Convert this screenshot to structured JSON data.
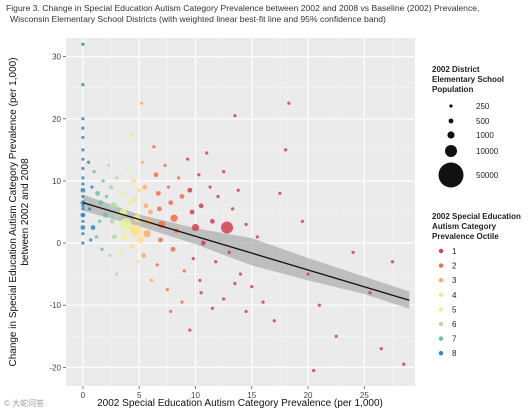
{
  "chart_data": {
    "type": "scatter",
    "title": "Figure 3. Change in Special Education Autism Category Prevalence between 2002 and 2008 vs Baseline (2002) Prevalence,",
    "subtitle": "Wisconsin Elementary School Districts (with weighted linear best-fit line and 95% confidence band)",
    "xlabel": "2002 Special Education Autism Category Prevalence (per 1,000)",
    "ylabel_line1": "Change in Special Education Autism Category Prevalence (per 1,000)",
    "ylabel_line2": "between 2002 and 2008",
    "xlim": [
      -1.5,
      29.5
    ],
    "ylim": [
      -23,
      33
    ],
    "x_ticks": [
      0,
      5,
      10,
      15,
      20,
      25
    ],
    "y_ticks": [
      -20,
      -10,
      0,
      10,
      20,
      30
    ],
    "grid": true,
    "fit_line": {
      "x": [
        0,
        29
      ],
      "y": [
        6.5,
        -9.2
      ]
    },
    "confidence_band": {
      "x": [
        0,
        5,
        10,
        15,
        20,
        25,
        29
      ],
      "lower": [
        5.2,
        2.7,
        -0.2,
        -3.6,
        -6.0,
        -8.2,
        -10.6
      ],
      "upper": [
        7.8,
        4.6,
        2.4,
        0.8,
        -2.4,
        -5.4,
        -7.8
      ]
    },
    "size_legend": {
      "title": [
        "2002 District",
        "Elementary School",
        "Population"
      ],
      "labels": [
        "250",
        "500",
        "1000",
        "10000",
        "50000"
      ]
    },
    "color_legend": {
      "title": [
        "2002 Special Education",
        "Autism Category",
        "Prevalence Octile"
      ],
      "labels": [
        "1",
        "2",
        "3",
        "4",
        "5",
        "6",
        "7",
        "8"
      ],
      "colors": [
        "#d53e4f",
        "#f46d43",
        "#fdae61",
        "#fee08b",
        "#e6f598",
        "#abdda4",
        "#66c2a5",
        "#3288bd"
      ]
    },
    "points": [
      {
        "x": 0,
        "y": 32,
        "s": 1,
        "g": 8
      },
      {
        "x": 0,
        "y": 25.5,
        "s": 1,
        "g": 8
      },
      {
        "x": 0,
        "y": 20,
        "s": 1,
        "g": 8
      },
      {
        "x": 0,
        "y": 18.5,
        "s": 1,
        "g": 8
      },
      {
        "x": 0,
        "y": 17,
        "s": 1,
        "g": 8
      },
      {
        "x": 0,
        "y": 15,
        "s": 1,
        "g": 8
      },
      {
        "x": 0,
        "y": 13.5,
        "s": 1,
        "g": 8
      },
      {
        "x": 0,
        "y": 12,
        "s": 1,
        "g": 8
      },
      {
        "x": 0,
        "y": 10.5,
        "s": 1,
        "g": 8
      },
      {
        "x": 0,
        "y": 9.5,
        "s": 1,
        "g": 8
      },
      {
        "x": 0,
        "y": 8.5,
        "s": 2,
        "g": 8
      },
      {
        "x": 0,
        "y": 7.5,
        "s": 1,
        "g": 8
      },
      {
        "x": 0,
        "y": 6.5,
        "s": 2,
        "g": 8
      },
      {
        "x": 0,
        "y": 5.5,
        "s": 1,
        "g": 8
      },
      {
        "x": 0,
        "y": 4.5,
        "s": 2,
        "g": 8
      },
      {
        "x": 0,
        "y": 3.5,
        "s": 1,
        "g": 8
      },
      {
        "x": 0,
        "y": 2.5,
        "s": 2,
        "g": 8
      },
      {
        "x": 0,
        "y": 1.5,
        "s": 1,
        "g": 8
      },
      {
        "x": 0,
        "y": 0,
        "s": 1,
        "g": 8
      },
      {
        "x": 0,
        "y": 4.5,
        "s": 1,
        "g": 8
      },
      {
        "x": 0,
        "y": 6.0,
        "s": 1,
        "g": 8
      },
      {
        "x": 0.5,
        "y": 13,
        "s": 1,
        "g": 8
      },
      {
        "x": 0.8,
        "y": 9,
        "s": 1,
        "g": 8
      },
      {
        "x": 0.6,
        "y": 5.5,
        "s": 1,
        "g": 8
      },
      {
        "x": 0.9,
        "y": 2.5,
        "s": 2,
        "g": 8
      },
      {
        "x": 0.7,
        "y": 0.5,
        "s": 1,
        "g": 8
      },
      {
        "x": 1.0,
        "y": 11.5,
        "s": 1,
        "g": 7
      },
      {
        "x": 1.3,
        "y": 8,
        "s": 2,
        "g": 7
      },
      {
        "x": 1.6,
        "y": 6.5,
        "s": 2,
        "g": 7
      },
      {
        "x": 1.5,
        "y": 3.5,
        "s": 1,
        "g": 7
      },
      {
        "x": 1.2,
        "y": 1,
        "s": 1,
        "g": 7
      },
      {
        "x": 1.8,
        "y": 10,
        "s": 1,
        "g": 7
      },
      {
        "x": 2.0,
        "y": 4.5,
        "s": 2,
        "g": 7
      },
      {
        "x": 2.1,
        "y": 7.5,
        "s": 1,
        "g": 7
      },
      {
        "x": 1.7,
        "y": -1,
        "s": 1,
        "g": 7
      },
      {
        "x": 2.3,
        "y": 12.5,
        "s": 1,
        "g": 6
      },
      {
        "x": 2.5,
        "y": 9,
        "s": 2,
        "g": 6
      },
      {
        "x": 2.7,
        "y": 6,
        "s": 3,
        "g": 6
      },
      {
        "x": 2.6,
        "y": 3.5,
        "s": 2,
        "g": 6
      },
      {
        "x": 2.8,
        "y": 1,
        "s": 2,
        "g": 6
      },
      {
        "x": 2.4,
        "y": -2,
        "s": 1,
        "g": 6
      },
      {
        "x": 3.0,
        "y": 10.5,
        "s": 1,
        "g": 6
      },
      {
        "x": 3.1,
        "y": 4.5,
        "s": 3,
        "g": 6
      },
      {
        "x": 3.0,
        "y": -5,
        "s": 1,
        "g": 6
      },
      {
        "x": 3.3,
        "y": 14.5,
        "s": 1,
        "g": 5
      },
      {
        "x": 3.5,
        "y": 8,
        "s": 2,
        "g": 5
      },
      {
        "x": 3.6,
        "y": 5,
        "s": 3,
        "g": 5
      },
      {
        "x": 3.8,
        "y": 3,
        "s": 4,
        "g": 5
      },
      {
        "x": 3.7,
        "y": 1,
        "s": 3,
        "g": 5
      },
      {
        "x": 3.4,
        "y": -1.5,
        "s": 2,
        "g": 5
      },
      {
        "x": 4.0,
        "y": 12,
        "s": 1,
        "g": 5
      },
      {
        "x": 4.1,
        "y": 6.5,
        "s": 2,
        "g": 5
      },
      {
        "x": 3.9,
        "y": -4,
        "s": 1,
        "g": 5
      },
      {
        "x": 4.3,
        "y": 17.5,
        "s": 1,
        "g": 4
      },
      {
        "x": 4.5,
        "y": 10,
        "s": 2,
        "g": 4
      },
      {
        "x": 4.6,
        "y": 7,
        "s": 2,
        "g": 4
      },
      {
        "x": 4.8,
        "y": 4,
        "s": 3,
        "g": 4
      },
      {
        "x": 4.7,
        "y": 2,
        "s": 4,
        "g": 4
      },
      {
        "x": 4.4,
        "y": -0.5,
        "s": 2,
        "g": 4
      },
      {
        "x": 5.0,
        "y": 8.5,
        "s": 2,
        "g": 4
      },
      {
        "x": 5.1,
        "y": 0.5,
        "s": 3,
        "g": 4
      },
      {
        "x": 4.9,
        "y": -3,
        "s": 1,
        "g": 4
      },
      {
        "x": 5.2,
        "y": 22.5,
        "s": 1,
        "g": 3
      },
      {
        "x": 5.3,
        "y": 13,
        "s": 1,
        "g": 3
      },
      {
        "x": 5.5,
        "y": 9,
        "s": 2,
        "g": 3
      },
      {
        "x": 5.6,
        "y": 6,
        "s": 2,
        "g": 3
      },
      {
        "x": 5.8,
        "y": 3.5,
        "s": 3,
        "g": 3
      },
      {
        "x": 5.7,
        "y": 1.5,
        "s": 3,
        "g": 3
      },
      {
        "x": 5.4,
        "y": -2,
        "s": 2,
        "g": 3
      },
      {
        "x": 6.0,
        "y": 5,
        "s": 2,
        "g": 3
      },
      {
        "x": 6.1,
        "y": -6,
        "s": 1,
        "g": 3
      },
      {
        "x": 6.3,
        "y": 15.5,
        "s": 1,
        "g": 2
      },
      {
        "x": 6.5,
        "y": 11,
        "s": 2,
        "g": 2
      },
      {
        "x": 6.7,
        "y": 8,
        "s": 2,
        "g": 2
      },
      {
        "x": 6.8,
        "y": 5.5,
        "s": 2,
        "g": 2
      },
      {
        "x": 7.0,
        "y": 3,
        "s": 3,
        "g": 2
      },
      {
        "x": 6.9,
        "y": 0.5,
        "s": 2,
        "g": 2
      },
      {
        "x": 6.6,
        "y": -3.5,
        "s": 1,
        "g": 2
      },
      {
        "x": 7.3,
        "y": 12.5,
        "s": 1,
        "g": 2
      },
      {
        "x": 7.6,
        "y": 9,
        "s": 1,
        "g": 2
      },
      {
        "x": 7.8,
        "y": 6.5,
        "s": 2,
        "g": 2
      },
      {
        "x": 8.1,
        "y": 4,
        "s": 3,
        "g": 2
      },
      {
        "x": 8.0,
        "y": -1,
        "s": 2,
        "g": 2
      },
      {
        "x": 7.5,
        "y": -7.5,
        "s": 1,
        "g": 2
      },
      {
        "x": 8.5,
        "y": 10.5,
        "s": 1,
        "g": 2
      },
      {
        "x": 8.8,
        "y": 7.5,
        "s": 2,
        "g": 2
      },
      {
        "x": 8.3,
        "y": 2,
        "s": 2,
        "g": 2
      },
      {
        "x": 9.0,
        "y": -4.5,
        "s": 1,
        "g": 2
      },
      {
        "x": 9.3,
        "y": 13.5,
        "s": 1,
        "g": 1
      },
      {
        "x": 9.5,
        "y": 8.5,
        "s": 2,
        "g": 1
      },
      {
        "x": 9.7,
        "y": 5,
        "s": 2,
        "g": 1
      },
      {
        "x": 10.0,
        "y": 2.5,
        "s": 3,
        "g": 1
      },
      {
        "x": 9.8,
        "y": -2.5,
        "s": 1,
        "g": 1
      },
      {
        "x": 10.3,
        "y": 11,
        "s": 1,
        "g": 1
      },
      {
        "x": 10.5,
        "y": 6,
        "s": 2,
        "g": 1
      },
      {
        "x": 10.7,
        "y": 0,
        "s": 2,
        "g": 1
      },
      {
        "x": 10.4,
        "y": -6,
        "s": 1,
        "g": 1
      },
      {
        "x": 11.0,
        "y": 14.5,
        "s": 1,
        "g": 1
      },
      {
        "x": 11.3,
        "y": 9,
        "s": 1,
        "g": 1
      },
      {
        "x": 11.5,
        "y": 3.5,
        "s": 2,
        "g": 1
      },
      {
        "x": 11.8,
        "y": -3,
        "s": 1,
        "g": 1
      },
      {
        "x": 12.0,
        "y": 7.5,
        "s": 1,
        "g": 1
      },
      {
        "x": 12.5,
        "y": 11.5,
        "s": 1,
        "g": 1
      },
      {
        "x": 12.8,
        "y": 2.5,
        "s": 4,
        "g": 1
      },
      {
        "x": 13.0,
        "y": -1.5,
        "s": 1,
        "g": 1
      },
      {
        "x": 13.3,
        "y": 5.5,
        "s": 1,
        "g": 1
      },
      {
        "x": 13.5,
        "y": 20.5,
        "s": 1,
        "g": 1
      },
      {
        "x": 13.8,
        "y": 8.5,
        "s": 1,
        "g": 1
      },
      {
        "x": 14.0,
        "y": -5,
        "s": 1,
        "g": 1
      },
      {
        "x": 14.5,
        "y": 3,
        "s": 1,
        "g": 1
      },
      {
        "x": 15.0,
        "y": -7,
        "s": 1,
        "g": 1
      },
      {
        "x": 15.5,
        "y": 1,
        "s": 1,
        "g": 1
      },
      {
        "x": 16.0,
        "y": -9.5,
        "s": 1,
        "g": 1
      },
      {
        "x": 17.0,
        "y": -12.5,
        "s": 1,
        "g": 1
      },
      {
        "x": 17.5,
        "y": 8,
        "s": 1,
        "g": 1
      },
      {
        "x": 18.0,
        "y": 15,
        "s": 1,
        "g": 1
      },
      {
        "x": 18.3,
        "y": 22.5,
        "s": 1,
        "g": 1
      },
      {
        "x": 19.5,
        "y": 3.5,
        "s": 1,
        "g": 1
      },
      {
        "x": 20.0,
        "y": -5,
        "s": 1,
        "g": 1
      },
      {
        "x": 21.0,
        "y": -10,
        "s": 1,
        "g": 1
      },
      {
        "x": 22.5,
        "y": -15,
        "s": 1,
        "g": 1
      },
      {
        "x": 24.0,
        "y": -1.5,
        "s": 1,
        "g": 1
      },
      {
        "x": 25.5,
        "y": -8,
        "s": 1,
        "g": 1
      },
      {
        "x": 26.5,
        "y": -17,
        "s": 1,
        "g": 1
      },
      {
        "x": 27.5,
        "y": -3,
        "s": 1,
        "g": 1
      },
      {
        "x": 28.5,
        "y": -19.5,
        "s": 1,
        "g": 1
      },
      {
        "x": 20.5,
        "y": -20.5,
        "s": 1,
        "g": 1
      },
      {
        "x": 9.5,
        "y": -14,
        "s": 1,
        "g": 1
      },
      {
        "x": 7.8,
        "y": -11,
        "s": 1,
        "g": 2
      },
      {
        "x": 11.5,
        "y": -10.5,
        "s": 1,
        "g": 1
      },
      {
        "x": 12.5,
        "y": -9,
        "s": 1,
        "g": 1
      },
      {
        "x": 10.5,
        "y": -8,
        "s": 1,
        "g": 1
      },
      {
        "x": 8.8,
        "y": -9.5,
        "s": 1,
        "g": 2
      },
      {
        "x": 14.5,
        "y": -11,
        "s": 1,
        "g": 1
      },
      {
        "x": 13.5,
        "y": -6.5,
        "s": 1,
        "g": 1
      }
    ]
  },
  "watermark": "© 大蛇问答"
}
